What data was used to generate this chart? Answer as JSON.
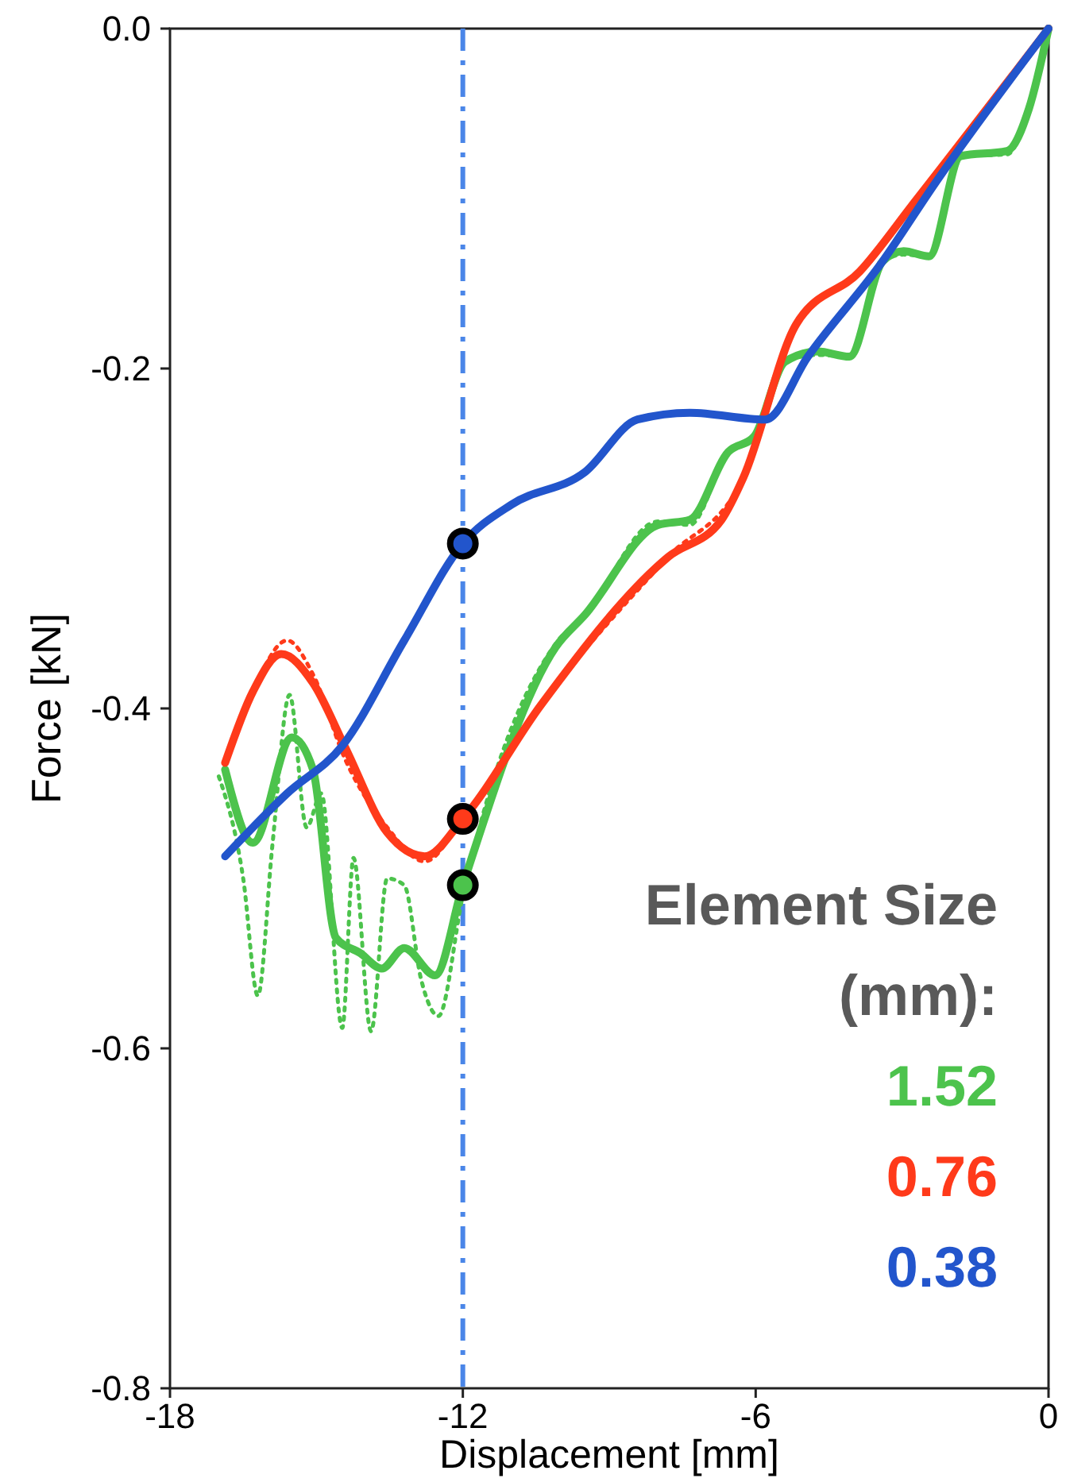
{
  "chart_data": {
    "type": "line",
    "xlabel": "Displacement [mm]",
    "ylabel": "Force [kN]",
    "legend_title": "Element Size (mm):",
    "xlim": [
      -18,
      0
    ],
    "xticks": [
      -18,
      -12,
      -6,
      0
    ],
    "ylim": [
      -0.8,
      0
    ],
    "yticks": [
      {
        "value": 0,
        "label": "0.0"
      },
      -0.2,
      -0.4,
      -0.6,
      -0.8
    ],
    "grid": false,
    "legend": "bottom right",
    "line_style": "solid",
    "ref_lines": [
      {
        "axis": "x",
        "value": -12,
        "color": "#4a86e8",
        "line_style": "dashed"
      }
    ],
    "series": [
      {
        "line_style": "dotted",
        "color": "#4cc34c",
        "x": [
          -17.0,
          -16.5,
          -16.2,
          -15.9,
          -15.55,
          -15.2,
          -14.9,
          -14.47,
          -14.24,
          -13.88,
          -13.55,
          -13.2,
          -12.85,
          -12.5,
          -12.0,
          -10.1,
          -9.5,
          -8.0,
          -7.35,
          -6.56,
          -6.03,
          -5.4,
          -4.73,
          -4.08,
          -3.4,
          -2.97,
          -2.45,
          -1.8,
          -0.85,
          -0.4,
          0
        ],
        "values": [
          -0.44,
          -0.5,
          -0.569,
          -0.48,
          -0.392,
          -0.47,
          -0.45,
          -0.588,
          -0.488,
          -0.59,
          -0.5,
          -0.504,
          -0.56,
          -0.581,
          -0.51,
          -0.362,
          -0.345,
          -0.29,
          -0.292,
          -0.249,
          -0.24,
          -0.196,
          -0.192,
          -0.193,
          -0.137,
          -0.133,
          -0.134,
          -0.075,
          -0.074,
          -0.047,
          0
        ]
      },
      {
        "line_style": "dotted",
        "color": "#ff3a1a",
        "x": [
          -16.87,
          -16.3,
          -15.6,
          -15.07,
          -14.41,
          -13.55,
          -12.78,
          -12.0,
          -10.4,
          -7.8,
          -6.25,
          -5.17,
          -3.87,
          -2.77,
          0
        ],
        "values": [
          -0.432,
          -0.39,
          -0.36,
          -0.38,
          -0.43,
          -0.47,
          -0.49,
          -0.465,
          -0.398,
          -0.311,
          -0.264,
          -0.174,
          -0.143,
          -0.103,
          0
        ]
      },
      {
        "name": "1.52",
        "color": "#4cc34c",
        "x": [
          -16.87,
          -16.3,
          -15.5,
          -15.07,
          -14.6,
          -14.1,
          -13.66,
          -13.2,
          -12.57,
          -12.0,
          -10.1,
          -9.5,
          -8.0,
          -7.35,
          -6.56,
          -6.03,
          -5.4,
          -4.73,
          -4.08,
          -3.4,
          -2.97,
          -2.45,
          -1.8,
          -0.85,
          -0.4,
          0
        ],
        "values": [
          -0.436,
          -0.479,
          -0.417,
          -0.436,
          -0.535,
          -0.544,
          -0.553,
          -0.541,
          -0.557,
          -0.504,
          -0.364,
          -0.345,
          -0.292,
          -0.289,
          -0.249,
          -0.24,
          -0.196,
          -0.19,
          -0.193,
          -0.137,
          -0.131,
          -0.134,
          -0.075,
          -0.072,
          -0.047,
          0
        ]
      },
      {
        "name": "0.76",
        "color": "#ff3a1a",
        "x": [
          -16.87,
          -16.3,
          -15.72,
          -15.07,
          -14.41,
          -13.55,
          -12.78,
          -12.0,
          -10.4,
          -7.8,
          -6.7,
          -6.25,
          -5.17,
          -3.87,
          -2.77,
          0
        ],
        "values": [
          -0.432,
          -0.39,
          -0.368,
          -0.385,
          -0.423,
          -0.473,
          -0.487,
          -0.465,
          -0.398,
          -0.311,
          -0.289,
          -0.264,
          -0.174,
          -0.143,
          -0.103,
          0
        ]
      },
      {
        "name": "0.38",
        "color": "#2255cc",
        "x": [
          -16.87,
          -15.6,
          -14.47,
          -13.2,
          -12.0,
          -11.0,
          -9.5,
          -8.42,
          -7.35,
          -5.8,
          -4.93,
          -3.4,
          -2.3,
          0
        ],
        "values": [
          -0.487,
          -0.45,
          -0.422,
          -0.36,
          -0.303,
          -0.28,
          -0.261,
          -0.23,
          -0.226,
          -0.23,
          -0.193,
          -0.137,
          -0.09,
          0
        ]
      },
      {
        "type": "scatter",
        "marker": "circle",
        "x": [
          -12,
          -12,
          -12
        ],
        "values": [
          -0.303,
          -0.465,
          -0.504
        ],
        "colors": [
          "#2255cc",
          "#ff3a1a",
          "#4cc34c"
        ]
      }
    ]
  }
}
